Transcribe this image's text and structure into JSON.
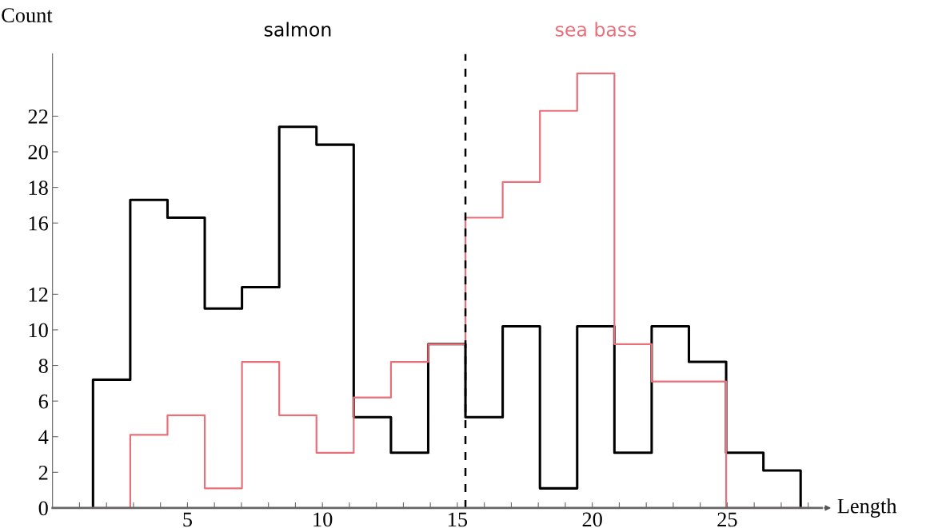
{
  "chart_data": {
    "type": "histogram",
    "xlabel": "Length",
    "ylabel": "Count",
    "bins": [
      1.5,
      2.88,
      4.26,
      5.64,
      7.02,
      8.4,
      9.78,
      11.16,
      12.54,
      13.92,
      15.3,
      16.68,
      18.06,
      19.44,
      20.82,
      22.2,
      23.58,
      24.96,
      26.34,
      27.72
    ],
    "series": [
      {
        "name": "salmon",
        "color": "#000000",
        "values": [
          7.2,
          17.3,
          16.3,
          11.2,
          12.4,
          21.4,
          20.4,
          5.1,
          3.1,
          9.2,
          5.1,
          10.2,
          1.1,
          10.2,
          3.1,
          10.2,
          8.2,
          3.1,
          2.1
        ]
      },
      {
        "name": "sea bass",
        "color": "#e8707a",
        "values": [
          0,
          4.1,
          5.2,
          1.1,
          8.2,
          5.2,
          3.1,
          6.2,
          8.2,
          9.2,
          16.3,
          18.3,
          22.3,
          24.4,
          9.2,
          7.1,
          7.1,
          0,
          0
        ]
      }
    ],
    "xlim": [
      0,
      28.5
    ],
    "ylim": [
      0,
      25.5
    ],
    "xticks": [
      {
        "value": 1,
        "label": null
      },
      {
        "value": 2,
        "label": null
      },
      {
        "value": 3,
        "label": null
      },
      {
        "value": 4,
        "label": null
      },
      5,
      {
        "value": 6,
        "label": null
      },
      {
        "value": 7,
        "label": null
      },
      {
        "value": 8,
        "label": null
      },
      {
        "value": 9,
        "label": null
      },
      10,
      {
        "value": 11,
        "label": null
      },
      {
        "value": 12,
        "label": null
      },
      {
        "value": 13,
        "label": null
      },
      {
        "value": 14,
        "label": null
      },
      15,
      {
        "value": 16,
        "label": null
      },
      {
        "value": 17,
        "label": null
      },
      {
        "value": 18,
        "label": null
      },
      {
        "value": 19,
        "label": null
      },
      20,
      {
        "value": 21,
        "label": null
      },
      {
        "value": 22,
        "label": null
      },
      {
        "value": 23,
        "label": null
      },
      {
        "value": 24,
        "label": null
      },
      25,
      {
        "value": 26,
        "label": null
      },
      {
        "value": 27,
        "label": null
      },
      {
        "value": 28,
        "label": null
      }
    ],
    "yticks": [
      0,
      2,
      4,
      6,
      8,
      10,
      12,
      16,
      18,
      20,
      22
    ],
    "ref_lines": [
      {
        "axis": "x",
        "value": 15.3,
        "color": "#000000",
        "line_style": "dashed"
      }
    ],
    "grid": false,
    "legend": false
  }
}
